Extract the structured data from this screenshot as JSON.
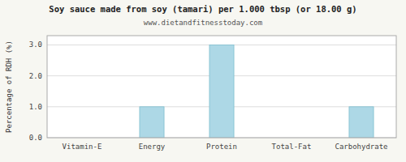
{
  "chart_data": {
    "type": "bar",
    "title": "Soy sauce made from soy (tamari) per 1.000 tbsp (or 18.00 g)",
    "subtitle": "www.dietandfitnesstoday.com",
    "categories": [
      "Vitamin-E",
      "Energy",
      "Protein",
      "Total-Fat",
      "Carbohydrate"
    ],
    "values": [
      0.0,
      1.0,
      3.0,
      0.0,
      1.0
    ],
    "color": "#add8e6",
    "ylabel": "Percentage of RDH (%)",
    "ylim": [
      0,
      3.3
    ],
    "yticks": [
      {
        "value": 0.0,
        "label": "0.0"
      },
      {
        "value": 1.0,
        "label": "1.0"
      },
      {
        "value": 2.0,
        "label": "2.0"
      },
      {
        "value": 3.0,
        "label": "3.0"
      }
    ],
    "grid": true
  }
}
